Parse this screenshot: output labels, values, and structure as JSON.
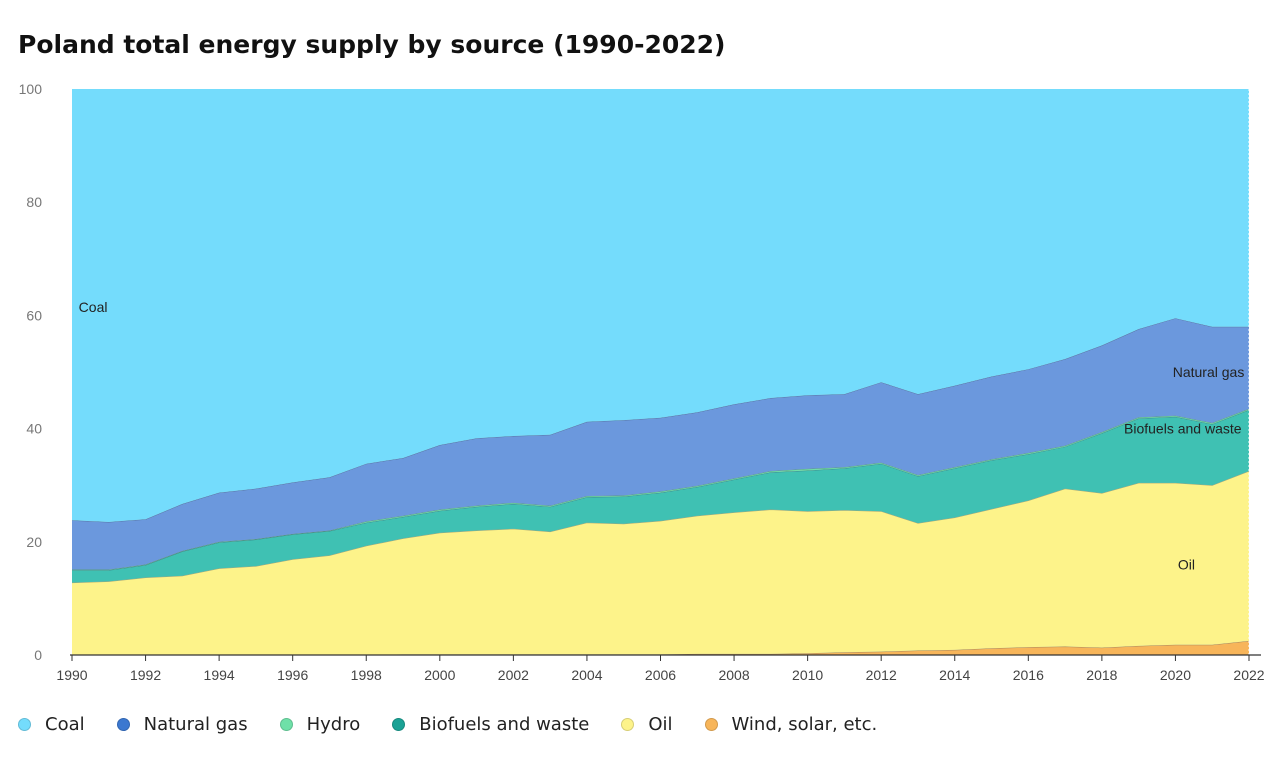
{
  "chart_data": {
    "type": "area",
    "stacked": true,
    "normalized_percent": true,
    "title": "Poland total energy supply by source (1990-2022)",
    "xlabel": "",
    "ylabel": "",
    "x": [
      1990,
      1991,
      1992,
      1993,
      1994,
      1995,
      1996,
      1997,
      1998,
      1999,
      2000,
      2001,
      2002,
      2003,
      2004,
      2005,
      2006,
      2007,
      2008,
      2009,
      2010,
      2011,
      2012,
      2013,
      2014,
      2015,
      2016,
      2017,
      2018,
      2019,
      2020,
      2021,
      2022
    ],
    "xlim": [
      1990,
      2022
    ],
    "ylim": [
      0,
      100
    ],
    "x_ticks": [
      "1990",
      "1992",
      "1994",
      "1996",
      "1998",
      "2000",
      "2002",
      "2004",
      "2006",
      "2008",
      "2010",
      "2012",
      "2014",
      "2016",
      "2018",
      "2020",
      "2022"
    ],
    "y_ticks": [
      "0",
      "20",
      "40",
      "60",
      "80",
      "100"
    ],
    "grid": true,
    "legend_position": "bottom",
    "series": [
      {
        "name": "Wind, solar, etc.",
        "color": "#f7b55a",
        "values": [
          0,
          0,
          0,
          0,
          0,
          0,
          0,
          0,
          0,
          0.1,
          0.1,
          0.1,
          0.1,
          0.1,
          0.1,
          0.1,
          0.1,
          0.2,
          0.2,
          0.2,
          0.3,
          0.5,
          0.6,
          0.8,
          0.9,
          1.2,
          1.4,
          1.5,
          1.3,
          1.6,
          1.8,
          1.8,
          2.5
        ]
      },
      {
        "name": "Oil",
        "color": "#fdf38a",
        "values": [
          12.8,
          13.0,
          13.7,
          14.0,
          15.3,
          15.7,
          16.9,
          17.6,
          19.3,
          20.5,
          21.5,
          21.9,
          22.2,
          21.7,
          23.3,
          23.1,
          23.6,
          24.4,
          25.0,
          25.5,
          25.1,
          25.1,
          24.8,
          22.5,
          23.4,
          24.6,
          25.9,
          27.9,
          27.3,
          28.8,
          28.6,
          28.2,
          30.0
        ]
      },
      {
        "name": "Biofuels and waste",
        "color": "#3fc1b3",
        "values": [
          2.2,
          2.0,
          2.2,
          4.3,
          4.6,
          4.7,
          4.4,
          4.3,
          4.1,
          3.8,
          3.9,
          4.2,
          4.4,
          4.4,
          4.5,
          4.8,
          5.0,
          5.1,
          5.8,
          6.6,
          7.2,
          7.4,
          8.4,
          8.3,
          8.7,
          8.6,
          8.2,
          7.4,
          10.6,
          11.4,
          11.7,
          10.8,
          10.8
        ]
      },
      {
        "name": "Hydro",
        "color": "#6fe0a8",
        "values": [
          0.1,
          0.1,
          0.1,
          0.1,
          0.1,
          0.1,
          0.1,
          0.1,
          0.2,
          0.2,
          0.2,
          0.2,
          0.2,
          0.2,
          0.2,
          0.2,
          0.2,
          0.2,
          0.2,
          0.2,
          0.3,
          0.2,
          0.2,
          0.2,
          0.2,
          0.2,
          0.2,
          0.2,
          0.2,
          0.2,
          0.2,
          0.2,
          0.2
        ]
      },
      {
        "name": "Natural gas",
        "color": "#6b98dd",
        "values": [
          8.7,
          8.4,
          8.0,
          8.3,
          8.7,
          8.9,
          9.1,
          9.4,
          10.2,
          10.2,
          11.4,
          11.9,
          11.8,
          12.5,
          13.1,
          13.3,
          13.0,
          13.0,
          13.1,
          12.9,
          13.0,
          12.9,
          14.2,
          14.3,
          14.4,
          14.6,
          14.8,
          15.3,
          15.3,
          15.6,
          17.2,
          17.0,
          14.5
        ]
      },
      {
        "name": "Coal",
        "color": "#74dcfc",
        "values": [
          76.2,
          76.5,
          76.0,
          73.3,
          71.3,
          70.6,
          69.5,
          68.6,
          66.2,
          65.2,
          62.9,
          61.7,
          61.3,
          61.1,
          58.8,
          58.5,
          58.1,
          57.1,
          55.7,
          54.6,
          54.1,
          53.9,
          51.8,
          53.9,
          52.4,
          50.8,
          49.5,
          47.7,
          45.3,
          42.4,
          40.5,
          42.0,
          42.0
        ]
      }
    ],
    "annotations": [
      {
        "text": "Coal",
        "x": 1990.1,
        "y": 61.5
      },
      {
        "text": "Natural gas",
        "x": 2020.9,
        "y": 50
      },
      {
        "text": "Biofuels and waste",
        "x": 2020.2,
        "y": 40
      },
      {
        "text": "Oil",
        "x": 2020.3,
        "y": 16
      }
    ]
  },
  "legend": [
    {
      "label": "Coal",
      "color": "#74dcfc"
    },
    {
      "label": "Natural gas",
      "color": "#3b78d0"
    },
    {
      "label": "Hydro",
      "color": "#6fe0a8"
    },
    {
      "label": "Biofuels and waste",
      "color": "#1aa295"
    },
    {
      "label": "Oil",
      "color": "#fdf38a"
    },
    {
      "label": "Wind, solar, etc.",
      "color": "#f7b55a"
    }
  ]
}
